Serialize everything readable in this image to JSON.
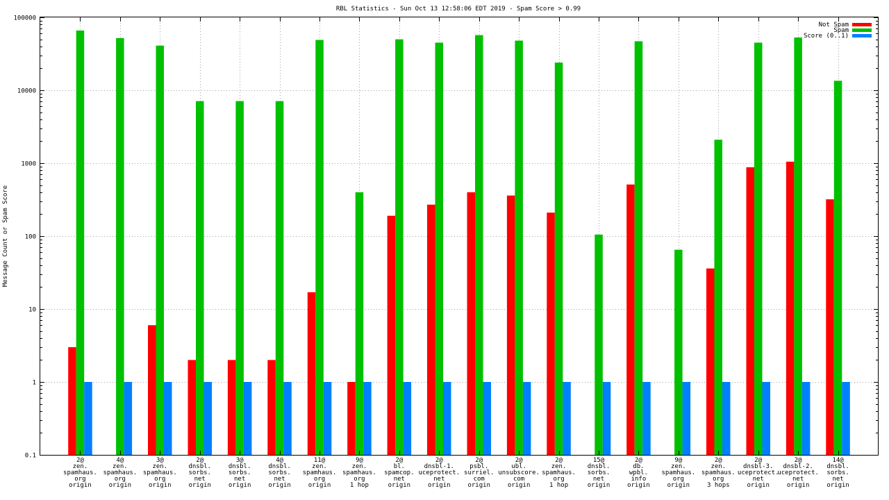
{
  "chart_data": {
    "type": "bar",
    "title": "RBL Statistics - Sun Oct 13 12:58:06 EDT 2019 - Spam Score > 0.99",
    "xlabel": "",
    "ylabel": "Message Count or Spam Score",
    "y_scale": "log",
    "ylim": [
      0.1,
      100000
    ],
    "y_ticks": [
      "0.1",
      "1",
      "10",
      "100",
      "1000",
      "10000",
      "100000"
    ],
    "grid": true,
    "legend_position": "top-right",
    "categories": [
      [
        "2@",
        "zen.",
        "spamhaus.",
        "org",
        "origin"
      ],
      [
        "4@",
        "zen.",
        "spamhaus.",
        "org",
        "origin"
      ],
      [
        "3@",
        "zen.",
        "spamhaus.",
        "org",
        "origin"
      ],
      [
        "2@",
        "dnsbl.",
        "sorbs.",
        "net",
        "origin"
      ],
      [
        "3@",
        "dnsbl.",
        "sorbs.",
        "net",
        "origin"
      ],
      [
        "4@",
        "dnsbl.",
        "sorbs.",
        "net",
        "origin"
      ],
      [
        "11@",
        "zen.",
        "spamhaus.",
        "org",
        "origin"
      ],
      [
        "9@",
        "zen.",
        "spamhaus.",
        "org",
        "1 hop"
      ],
      [
        "2@",
        "bl.",
        "spamcop.",
        "net",
        "origin"
      ],
      [
        "2@",
        "dnsbl-1.",
        "uceprotect.",
        "net",
        "origin"
      ],
      [
        "2@",
        "psbl.",
        "surriel.",
        "com",
        "origin"
      ],
      [
        "2@",
        "ubl.",
        "unsubscore.",
        "com",
        "origin"
      ],
      [
        "2@",
        "zen.",
        "spamhaus.",
        "org",
        "1 hop"
      ],
      [
        "15@",
        "dnsbl.",
        "sorbs.",
        "net",
        "origin"
      ],
      [
        "2@",
        "db.",
        "wpbl.",
        "info",
        "origin"
      ],
      [
        "9@",
        "zen.",
        "spamhaus.",
        "org",
        "origin"
      ],
      [
        "2@",
        "zen.",
        "spamhaus.",
        "org",
        "3 hops"
      ],
      [
        "2@",
        "dnsbl-3.",
        "uceprotect.",
        "net",
        "origin"
      ],
      [
        "2@",
        "dnsbl-2.",
        "uceprotect.",
        "net",
        "origin"
      ],
      [
        "14@",
        "dnsbl.",
        "sorbs.",
        "net",
        "origin"
      ]
    ],
    "series": [
      {
        "name": "Not Spam",
        "color": "#ff0000",
        "values": [
          3,
          null,
          6,
          2,
          2,
          2,
          17,
          1,
          190,
          270,
          400,
          360,
          210,
          null,
          510,
          null,
          36,
          880,
          1050,
          320
        ]
      },
      {
        "name": "Spam",
        "color": "#00c000",
        "values": [
          66000,
          52000,
          41000,
          7100,
          7100,
          7100,
          49000,
          400,
          50000,
          45000,
          57000,
          48000,
          24000,
          105,
          47000,
          65,
          2100,
          45000,
          53000,
          13500
        ]
      },
      {
        "name": "Score (0..1)",
        "color": "#0080ff",
        "values": [
          1,
          1,
          1,
          1,
          1,
          1,
          1,
          1,
          1,
          1,
          1,
          1,
          1,
          1,
          1,
          1,
          1,
          1,
          1,
          1
        ]
      }
    ]
  }
}
